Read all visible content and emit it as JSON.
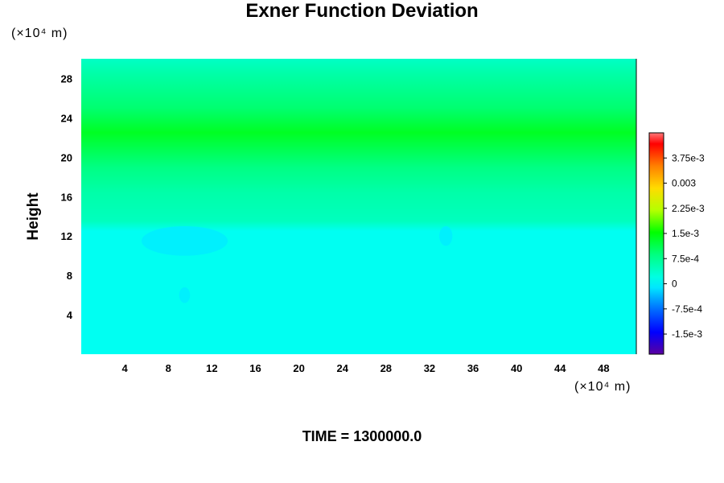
{
  "chart_data": {
    "type": "heatmap",
    "title": "Exner Function Deviation",
    "xlabel": "",
    "ylabel": "Height",
    "x_unit": "(×10⁴ m)",
    "y_unit": "(×10⁴ m)",
    "xlim": [
      0,
      51
    ],
    "ylim": [
      0,
      30
    ],
    "x_ticks": [
      4,
      8,
      12,
      16,
      20,
      24,
      28,
      32,
      36,
      40,
      44,
      48
    ],
    "y_ticks": [
      4,
      8,
      12,
      16,
      20,
      24,
      28
    ],
    "footer": "TIME = 1300000.0",
    "colorbar": {
      "min": -0.0021,
      "max": 0.0045,
      "tick_values": [
        0.00375,
        0.003,
        0.00225,
        0.0015,
        0.00075,
        0,
        -0.00075,
        -0.0015
      ],
      "tick_labels": [
        "3.75e-3",
        "0.003",
        "2.25e-3",
        "1.5e-3",
        "7.5e-4",
        "0",
        "-7.5e-4",
        "-1.5e-3"
      ]
    },
    "vertical_profile": [
      {
        "height": 0,
        "value": 0.0001
      },
      {
        "height": 12.5,
        "value": 0.0001
      },
      {
        "height": 13.5,
        "value": 0.00045
      },
      {
        "height": 16.5,
        "value": 0.0006
      },
      {
        "height": 19,
        "value": 0.00085
      },
      {
        "height": 22.5,
        "value": 0.00135
      },
      {
        "height": 25,
        "value": 0.00095
      },
      {
        "height": 28.5,
        "value": 0.0006
      },
      {
        "height": 30,
        "value": 0.0004
      }
    ],
    "anomalies": [
      {
        "x": 9.5,
        "height": 11.5,
        "value": -8e-05
      },
      {
        "x": 9.5,
        "height": 6.0,
        "value": -8e-05
      },
      {
        "x": 33.5,
        "height": 12.0,
        "value": -8e-05
      }
    ]
  }
}
